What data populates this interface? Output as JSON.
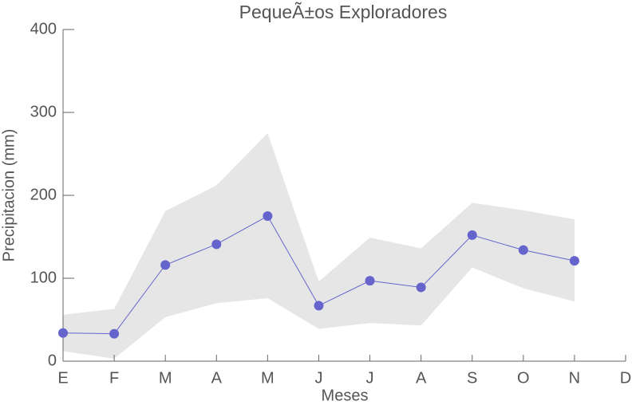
{
  "chart_data": {
    "type": "line",
    "title": "PequeÃ±os Exploradores",
    "x_label": "Meses",
    "y_label": "Precipitacion (mm)",
    "categories": [
      "E",
      "F",
      "M",
      "A",
      "M",
      "J",
      "J",
      "A",
      "S",
      "O",
      "N",
      "D"
    ],
    "series": [
      {
        "color": "#6464cc",
        "values": [
          34,
          33,
          116,
          141,
          175,
          67,
          97,
          89,
          152,
          134,
          121,
          null
        ]
      }
    ],
    "band": {
      "color": "#e6e6e6",
      "upper": [
        56,
        63,
        181,
        212,
        275,
        96,
        149,
        136,
        191,
        182,
        171,
        null
      ],
      "lower": [
        12,
        3,
        53,
        70,
        76,
        39,
        46,
        43,
        113,
        88,
        72,
        null
      ]
    },
    "ylim": [
      0,
      400
    ],
    "yticks": [
      0,
      100,
      200,
      300,
      400
    ]
  }
}
